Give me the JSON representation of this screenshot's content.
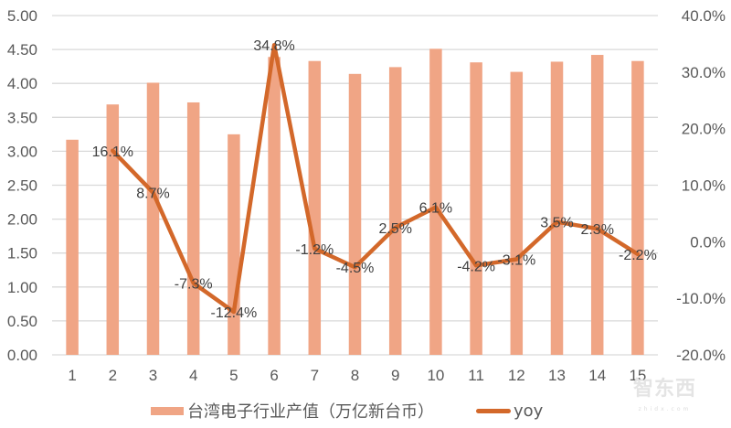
{
  "chart_data": {
    "type": "bar+line",
    "title": "",
    "categories": [
      "1",
      "2",
      "3",
      "4",
      "5",
      "6",
      "7",
      "8",
      "9",
      "10",
      "11",
      "12",
      "13",
      "14",
      "15"
    ],
    "series": [
      {
        "name": "台湾电子行业产值（万亿新台币）",
        "type": "bar",
        "axis": "left",
        "color": "#f0a585",
        "values": [
          3.17,
          3.69,
          4.01,
          3.72,
          3.25,
          4.39,
          4.33,
          4.14,
          4.24,
          4.51,
          4.31,
          4.17,
          4.32,
          4.42,
          4.33
        ]
      },
      {
        "name": "yoy",
        "type": "line",
        "axis": "right",
        "color": "#d3682a",
        "values": [
          null,
          16.1,
          8.7,
          -7.3,
          -12.4,
          34.8,
          -1.2,
          -4.5,
          2.5,
          6.1,
          -4.2,
          -3.1,
          3.5,
          2.3,
          -2.2
        ],
        "labels": [
          "",
          "16.1%",
          "8.7%",
          "-7.3%",
          "-12.4%",
          "34.8%",
          "-1.2%",
          "-4.5%",
          "2.5%",
          "6.1%",
          "-4.2%",
          "-3.1%",
          "3.5%",
          "2.3%",
          "-2.2%"
        ]
      }
    ],
    "left_axis": {
      "ylim": [
        0,
        5
      ],
      "ticks": [
        "0.00",
        "0.50",
        "1.00",
        "1.50",
        "2.00",
        "2.50",
        "3.00",
        "3.50",
        "4.00",
        "4.50",
        "5.00"
      ]
    },
    "right_axis": {
      "ylim": [
        -20,
        40
      ],
      "ticks": [
        "-20.0%",
        "-10.0%",
        "0.0%",
        "10.0%",
        "20.0%",
        "30.0%",
        "40.0%"
      ]
    },
    "xlabel": "",
    "ylabel": "",
    "grid": true,
    "legend_position": "bottom"
  },
  "legend": {
    "bar_label": "台湾电子行业产值（万亿新台币）",
    "line_label": "yoy"
  },
  "watermark": {
    "main": "智东西",
    "sub": "zhidx.com"
  }
}
